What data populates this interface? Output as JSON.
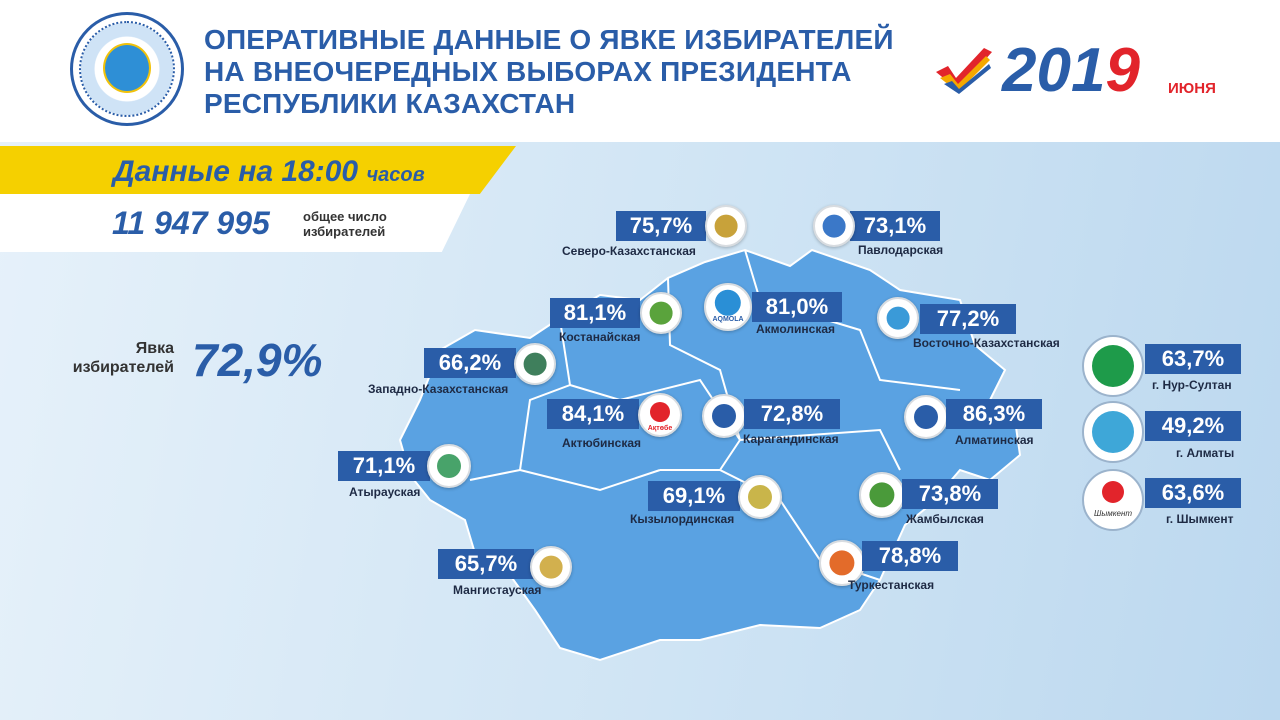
{
  "header": {
    "title": "ОПЕРАТИВНЫЕ ДАННЫЕ О ЯВКЕ ИЗБИРАТЕЛЕЙ\nНА ВНЕОЧЕРЕДНЫХ ВЫБОРАХ ПРЕЗИДЕНТА\nРЕСПУБЛИКИ КАЗАХСТАН",
    "year_main": "201",
    "year_last": "9",
    "month": "ИЮНЯ",
    "emblem_icon": "election-commission-emblem-icon",
    "check_icon": "checkmark-icon"
  },
  "banner": {
    "prefix": "Данные на 18:00",
    "suffix": "часов",
    "color": "#f5d000"
  },
  "total": {
    "value": "11 947 995",
    "label": "общее число\nизбирателей"
  },
  "turnout": {
    "label": "Явка\nизбирателей",
    "value": "72,9%"
  },
  "colors": {
    "primary": "#2a5da8",
    "accent": "#e2242b",
    "map": "#5aa2e2"
  },
  "regions": [
    {
      "name": "Северо-Казахстанская",
      "value": "75,7%"
    },
    {
      "name": "Павлодарская",
      "value": "73,1%"
    },
    {
      "name": "Костанайская",
      "value": "81,1%"
    },
    {
      "name": "Акмолинская",
      "value": "81,0%",
      "logo_text": "AQMOLA"
    },
    {
      "name": "Восточно-Казахстанская",
      "value": "77,2%"
    },
    {
      "name": "Западно-Казахстанская",
      "value": "66,2%"
    },
    {
      "name": "Актюбинская",
      "value": "84,1%",
      "logo_text": "Ақтөбе"
    },
    {
      "name": "Карагандинская",
      "value": "72,8%"
    },
    {
      "name": "Алматинская",
      "value": "86,3%"
    },
    {
      "name": "Атырауская",
      "value": "71,1%"
    },
    {
      "name": "Кызылординская",
      "value": "69,1%"
    },
    {
      "name": "Жамбылская",
      "value": "73,8%"
    },
    {
      "name": "Мангистауская",
      "value": "65,7%"
    },
    {
      "name": "Туркестанская",
      "value": "78,8%"
    }
  ],
  "cities": [
    {
      "name": "г. Нур-Султан",
      "value": "63,7%"
    },
    {
      "name": "г. Алматы",
      "value": "49,2%"
    },
    {
      "name": "г. Шымкент",
      "value": "63,6%",
      "logo_text": "Шымкент"
    }
  ]
}
